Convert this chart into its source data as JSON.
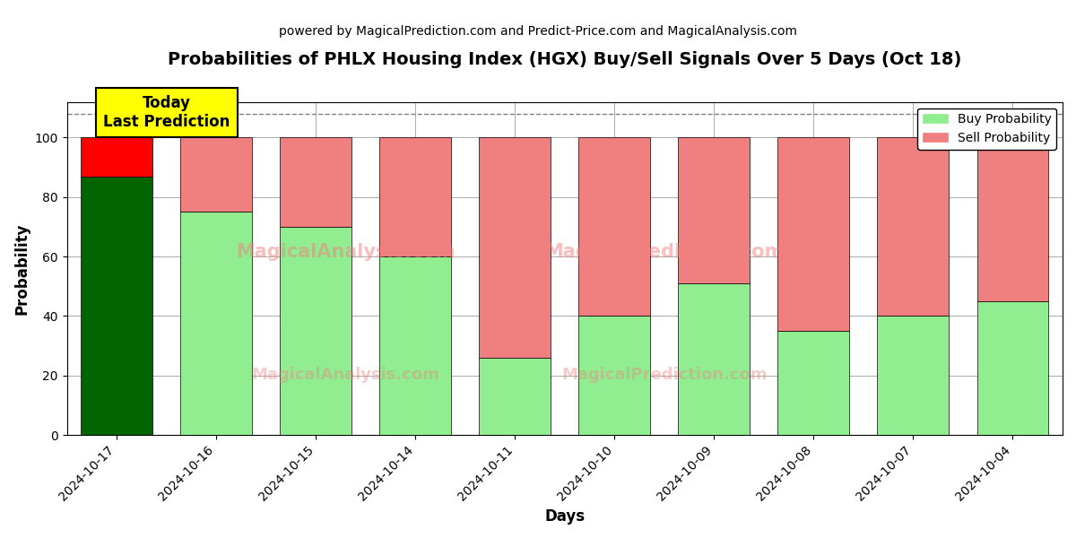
{
  "title": "Probabilities of PHLX Housing Index (HGX) Buy/Sell Signals Over 5 Days (Oct 18)",
  "subtitle": "powered by MagicalPrediction.com and Predict-Price.com and MagicalAnalysis.com",
  "xlabel": "Days",
  "ylabel": "Probability",
  "categories": [
    "2024-10-17",
    "2024-10-16",
    "2024-10-15",
    "2024-10-14",
    "2024-10-11",
    "2024-10-10",
    "2024-10-09",
    "2024-10-08",
    "2024-10-07",
    "2024-10-04"
  ],
  "buy_values": [
    87,
    75,
    70,
    60,
    26,
    40,
    51,
    35,
    40,
    45
  ],
  "sell_values": [
    13,
    25,
    30,
    40,
    74,
    60,
    49,
    65,
    60,
    55
  ],
  "today_buy_color": "#006400",
  "today_sell_color": "#FF0000",
  "buy_color": "#90EE90",
  "sell_color": "#F08080",
  "today_annotation_text": "Today\nLast Prediction",
  "today_annotation_bg": "#FFFF00",
  "ylim": [
    0,
    112
  ],
  "yticks": [
    0,
    20,
    40,
    60,
    80,
    100
  ],
  "dashed_line_y": 108,
  "legend_buy_label": "Buy Probability",
  "legend_sell_label": "Sell Probability",
  "title_fontsize": 14,
  "subtitle_fontsize": 10,
  "axis_label_fontsize": 12,
  "tick_fontsize": 10,
  "bg_color": "#FFFFFF",
  "grid_color": "#AAAAAA",
  "bar_width": 0.72
}
